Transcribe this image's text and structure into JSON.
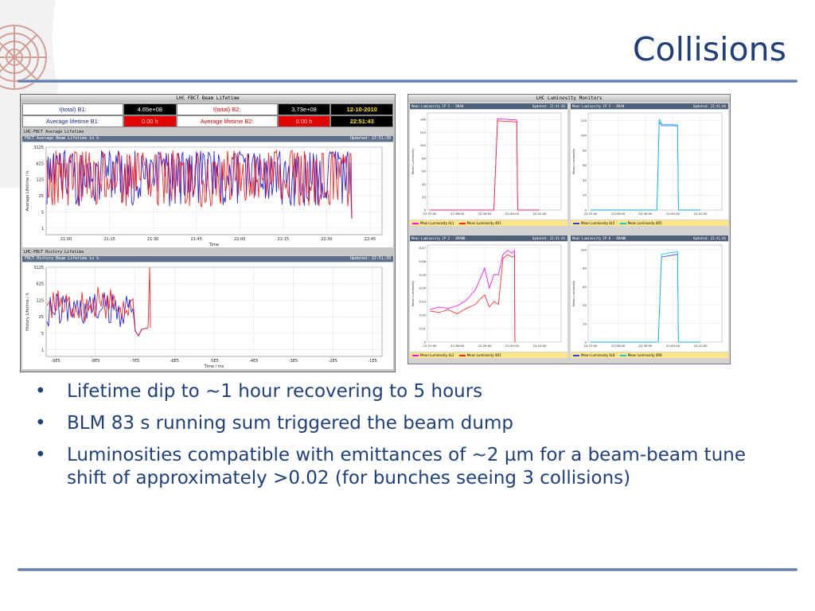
{
  "slide": {
    "title": "Collisions",
    "bullets": [
      "Lifetime dip to ~1 hour recovering to 5 hours",
      "BLM 83 s running sum triggered the beam dump",
      "Luminosities compatible with emittances of ~2 µm for a beam-beam tune shift of approximately >0.02 (for bunches seeing 3 collisions)"
    ],
    "bullet_glyph": "•",
    "colors": {
      "title": "#1f3f7a",
      "rule": "#506f9c"
    }
  },
  "lifetime_panel": {
    "window_title": "LHC FBCT Beam Lifetime",
    "info": {
      "b1_label": "I(total) B1:",
      "b1_value": "4.65e+08",
      "b2_label": "I(total) B2:",
      "b2_value": "3.73e+08",
      "avg_b1_label": "Average lifetime B1:",
      "avg_b1_value": "0.00 h",
      "avg_b2_label": "Average lifetime B2:",
      "avg_b2_value": "0.00 h",
      "date": "12-10-2010",
      "time": "22:51:43"
    },
    "avg_section_label": "LHC-FBCT Average Lifetime",
    "avg_plot_title": "FBCT Average Beam Lifetime in h",
    "avg_plot_updated": "Updated: 22:51:39",
    "hist_section_label": "LHC-FBCT History Lifetime",
    "hist_plot_title": "FBCT History Beam Lifetime in h",
    "hist_plot_updated": "Updated: 22:51:39"
  },
  "lumi_panel": {
    "window_title": "LHC Luminosity Monitors",
    "plots": [
      {
        "header": "Mean Luminosity IP 1 - BRAN",
        "updated": "Updated: 22:41:46",
        "legend": [
          "Mean Luminosity 4L1",
          "Mean Luminosity 4R1"
        ]
      },
      {
        "header": "Mean Luminosity IP 5 - BRAN",
        "updated": "Updated: 22:41:46",
        "legend": [
          "Mean Luminosity 4L5",
          "Mean Luminosity 4R5"
        ]
      },
      {
        "header": "Mean Luminosity IP 2 - BRANB",
        "updated": "Updated: 22:41:46",
        "legend": [
          "Mean Luminosity 4L2",
          "Mean Luminosity 4R2"
        ]
      },
      {
        "header": "Mean Luminosity IP 8 - BRANB",
        "updated": "Updated: 22:41:46",
        "legend": [
          "Mean Luminosity 4L8",
          "Mean Luminosity 4R8"
        ]
      }
    ]
  },
  "chart_data": [
    {
      "type": "line",
      "title": "FBCT Average Beam Lifetime in h",
      "xlabel": "Time",
      "ylabel": "Average Lifetime / h",
      "x_ticks": [
        "21:00",
        "21:15",
        "21:30",
        "21:45",
        "22:00",
        "22:15",
        "22:30",
        "22:45"
      ],
      "y_ticks": [
        "3125",
        "625",
        "125",
        "25",
        "5",
        "1"
      ],
      "log_scale": true,
      "series": [
        {
          "color": "#1010e0"
        },
        {
          "color": "#ff0000"
        }
      ]
    },
    {
      "type": "line",
      "title": "FBCT History Beam Lifetime in h",
      "xlabel": "Time / ms",
      "ylabel": "History Lifetime / h",
      "x_ticks": [
        "-9E5",
        "-8E5",
        "-7E5",
        "-6E5",
        "-5E5",
        "-4E5",
        "-3E5",
        "-2E5",
        "-1E5"
      ],
      "y_ticks": [
        "3125",
        "625",
        "125",
        "25",
        "5",
        "1"
      ],
      "log_scale": true,
      "series": [
        {
          "color": "#1010e0"
        },
        {
          "color": "#ff0000"
        }
      ]
    },
    {
      "type": "line",
      "title": "Mean Luminosity IP 1 - BRAN",
      "ylabel": "Mean Luminosity",
      "x_ticks": [
        "22:37:00",
        "22:38:00",
        "22:39:00",
        "22:40:00",
        "22:41:00"
      ],
      "y_ticks": [
        "0",
        "20",
        "40",
        "60",
        "80",
        "100",
        "120",
        "140"
      ],
      "ylim": [
        0,
        150
      ],
      "series": [
        {
          "name": "Mean Luminosity 4L1",
          "color": "#ff00ff",
          "x": [
            "22:37:00",
            "22:39:20",
            "22:39:28",
            "22:40:10",
            "22:40:12",
            "22:41:00"
          ],
          "y": [
            0,
            0,
            141,
            139,
            0,
            0
          ]
        },
        {
          "name": "Mean Luminosity 4R1",
          "color": "#ff2020",
          "x": [
            "22:37:00",
            "22:39:20",
            "22:39:28",
            "22:40:10",
            "22:40:12",
            "22:41:00"
          ],
          "y": [
            0,
            0,
            138,
            136,
            0,
            0
          ]
        }
      ]
    },
    {
      "type": "line",
      "title": "Mean Luminosity IP 5 - BRAN",
      "ylabel": "Mean Luminosity",
      "x_ticks": [
        "22:37:00",
        "22:38:00",
        "22:39:00",
        "22:40:00",
        "22:41:00"
      ],
      "y_ticks": [
        "0",
        "20",
        "40",
        "60",
        "80",
        "100",
        "120"
      ],
      "ylim": [
        0,
        130
      ],
      "series": [
        {
          "name": "Mean Luminosity 4L5",
          "color": "#1f3fff",
          "x": [
            "22:37:00",
            "22:39:25",
            "22:39:30",
            "22:39:36",
            "22:40:10",
            "22:40:12",
            "22:41:00"
          ],
          "y": [
            0,
            0,
            118,
            113,
            113,
            0,
            0
          ]
        },
        {
          "name": "Mean Luminosity 4R5",
          "color": "#00c8e0",
          "x": [
            "22:37:00",
            "22:39:25",
            "22:39:30",
            "22:39:36",
            "22:40:10",
            "22:40:12",
            "22:41:00"
          ],
          "y": [
            0,
            0,
            122,
            115,
            114,
            0,
            0
          ]
        }
      ]
    },
    {
      "type": "line",
      "title": "Mean Luminosity IP 2 - BRANB",
      "ylabel": "Mean Luminosity",
      "x_ticks": [
        "22:37:00",
        "22:38:00",
        "22:39:00",
        "22:40:00",
        "22:41:00"
      ],
      "y_ticks": [
        "0",
        "0.01",
        "0.02",
        "0.03",
        "0.04",
        "0.05",
        "0.06",
        "0.07"
      ],
      "ylim": [
        0,
        0.072
      ],
      "series": [
        {
          "name": "Mean Luminosity 4L2",
          "color": "#ff00ff",
          "x": [
            "22:37:00",
            "22:37:20",
            "22:37:40",
            "22:38:00",
            "22:38:20",
            "22:38:40",
            "22:38:50",
            "22:39:00",
            "22:39:10",
            "22:39:20",
            "22:39:30",
            "22:39:40",
            "22:39:50",
            "22:40:00",
            "22:40:05",
            "22:40:06"
          ],
          "y": [
            0.024,
            0.026,
            0.025,
            0.027,
            0.031,
            0.039,
            0.047,
            0.055,
            0.04,
            0.05,
            0.05,
            0.065,
            0.068,
            0.066,
            0.068,
            0
          ]
        },
        {
          "name": "Mean Luminosity 4R2",
          "color": "#ff2020",
          "x": [
            "22:37:00",
            "22:37:20",
            "22:37:40",
            "22:38:00",
            "22:38:20",
            "22:38:40",
            "22:38:50",
            "22:39:00",
            "22:39:10",
            "22:39:20",
            "22:39:30",
            "22:39:40",
            "22:39:50",
            "22:40:00",
            "22:40:05",
            "22:40:06"
          ],
          "y": [
            0.023,
            0.022,
            0.024,
            0.021,
            0.025,
            0.028,
            0.032,
            0.035,
            0.026,
            0.03,
            0.028,
            0.062,
            0.065,
            0.063,
            0.064,
            0
          ]
        }
      ]
    },
    {
      "type": "line",
      "title": "Mean Luminosity IP 8 - BRANB",
      "ylabel": "Mean Luminosity",
      "x_ticks": [
        "22:37:00",
        "22:38:00",
        "22:39:00",
        "22:40:00",
        "22:41:00"
      ],
      "y_ticks": [
        "0",
        "20",
        "40",
        "60",
        "80",
        "100"
      ],
      "ylim": [
        0,
        105
      ],
      "series": [
        {
          "name": "Mean Luminosity 4L8",
          "color": "#1f3fff",
          "x": [
            "22:37:00",
            "22:39:28",
            "22:39:35",
            "22:40:10",
            "22:40:12",
            "22:41:00"
          ],
          "y": [
            0,
            0,
            92,
            95,
            0,
            0
          ]
        },
        {
          "name": "Mean Luminosity 4R8",
          "color": "#00c8e0",
          "x": [
            "22:37:00",
            "22:39:28",
            "22:39:35",
            "22:40:10",
            "22:40:12",
            "22:41:00"
          ],
          "y": [
            0,
            0,
            95,
            98,
            0,
            0
          ]
        }
      ]
    }
  ]
}
